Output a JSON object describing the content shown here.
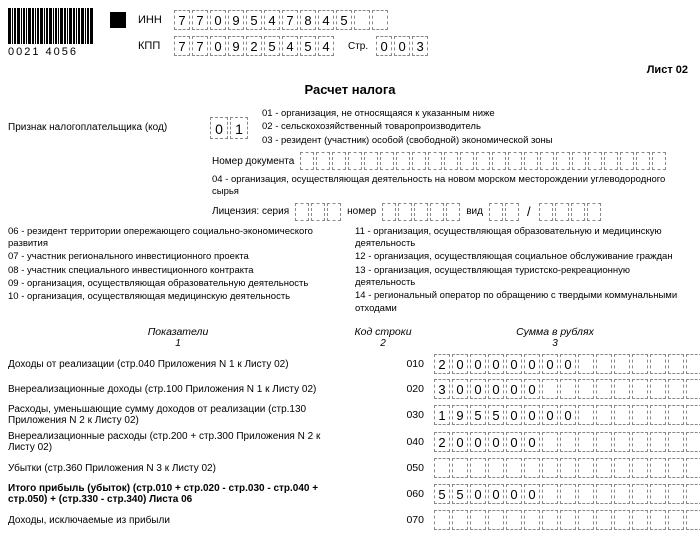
{
  "barcode": {
    "number": "0021 4056"
  },
  "header": {
    "inn_label": "ИНН",
    "inn": [
      "7",
      "7",
      "0",
      "9",
      "5",
      "4",
      "7",
      "8",
      "4",
      "5"
    ],
    "kpp_label": "КПП",
    "kpp": [
      "7",
      "7",
      "0",
      "9",
      "2",
      "5",
      "4",
      "5",
      "4"
    ],
    "page_label": "Стр.",
    "page": [
      "0",
      "0",
      "3"
    ]
  },
  "sheet": "Лист 02",
  "title": "Расчет налога",
  "taxpayer": {
    "label": "Признак налогоплательщика (код)",
    "code": [
      "0",
      "1"
    ],
    "legend": [
      "01 - организация, не относящаяся к указанным ниже",
      "02 - сельскохозяйственный товаропроизводитель",
      "03 - резидент (участник) особой (свободной) экономической зоны"
    ]
  },
  "doc_number_label": "Номер документа",
  "note04": "04 - организация, осуществляющая деятельность на новом морском месторождении углеводородного сырья",
  "license": {
    "label": "Лицензия: серия",
    "num_label": "номер",
    "type_label": "вид"
  },
  "left_legend": [
    "06 - резидент территории опережающего социально-экономического развития",
    "07 - участник регионального инвестиционного проекта",
    "08 - участник специального инвестиционного контракта",
    "09 - организация, осуществляющая образовательную деятельность",
    "10 - организация, осуществляющая медицинскую деятельность"
  ],
  "right_legend": [
    "11 - организация, осуществляющая образовательную и медицинскую деятельность",
    "12 - организация, осуществляющая социальное обслуживание граждан",
    "13 - организация, осуществляющая туристско-рекреационную деятельность",
    "14 - региональный оператор по обращению с твердыми коммунальными отходами"
  ],
  "table": {
    "h1": "Показатели",
    "h2": "Код строки",
    "h3": "Сумма в рублях",
    "s1": "1",
    "s2": "2",
    "s3": "3",
    "rows": [
      {
        "label": "Доходы от реализации (стр.040 Приложения N 1 к Листу 02)",
        "code": "010",
        "sum": [
          "2",
          "0",
          "0",
          "0",
          "0",
          "0",
          "0",
          "0",
          "",
          "",
          "",
          "",
          "",
          "",
          ""
        ]
      },
      {
        "label": "Внереализационные доходы (стр.100 Приложения N 1 к Листу 02)",
        "code": "020",
        "sum": [
          "3",
          "0",
          "0",
          "0",
          "0",
          "0",
          "",
          "",
          "",
          "",
          "",
          "",
          "",
          "",
          ""
        ]
      },
      {
        "label": "Расходы, уменьшающие сумму доходов от реализации (стр.130 Приложения N 2 к Листу 02)",
        "code": "030",
        "sum": [
          "1",
          "9",
          "5",
          "5",
          "0",
          "0",
          "0",
          "0",
          "",
          "",
          "",
          "",
          "",
          "",
          ""
        ]
      },
      {
        "label": "Внереализационные расходы (стр.200 + стр.300 Приложения N 2 к Листу 02)",
        "code": "040",
        "sum": [
          "2",
          "0",
          "0",
          "0",
          "0",
          "0",
          "",
          "",
          "",
          "",
          "",
          "",
          "",
          "",
          ""
        ]
      },
      {
        "label": "Убытки (стр.360 Приложения N 3 к Листу 02)",
        "code": "050",
        "sum": [
          "",
          "",
          "",
          "",
          "",
          "",
          "",
          "",
          "",
          "",
          "",
          "",
          "",
          "",
          ""
        ]
      },
      {
        "label": "Итого прибыль (убыток) (стр.010 + стр.020 - стр.030 - стр.040 + стр.050) + (стр.330 - стр.340) Листа 06",
        "code": "060",
        "bold": true,
        "sum": [
          "5",
          "5",
          "0",
          "0",
          "0",
          "0",
          "",
          "",
          "",
          "",
          "",
          "",
          "",
          "",
          ""
        ]
      },
      {
        "label": "Доходы, исключаемые из прибыли",
        "code": "070",
        "sum": [
          "",
          "",
          "",
          "",
          "",
          "",
          "",
          "",
          "",
          "",
          "",
          "",
          "",
          "",
          ""
        ]
      }
    ]
  }
}
